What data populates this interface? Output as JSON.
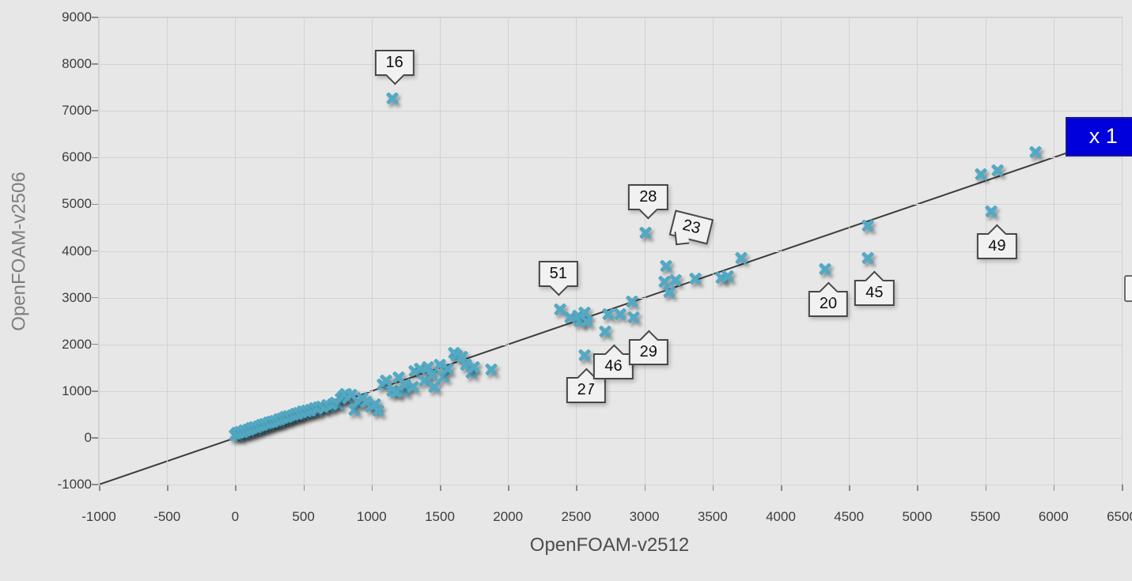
{
  "chart_data": {
    "type": "scatter",
    "title": "",
    "xlabel": "OpenFOAM-v2512",
    "ylabel": "OpenFOAM-v2506",
    "xlim": [
      -1000,
      6500
    ],
    "ylim": [
      -1000,
      9000
    ],
    "xticks": [
      -1000,
      -500,
      0,
      500,
      1000,
      1500,
      2000,
      2500,
      3000,
      3500,
      4000,
      4500,
      5000,
      5500,
      6000,
      6500
    ],
    "yticks": [
      -1000,
      0,
      1000,
      2000,
      3000,
      4000,
      5000,
      6000,
      7000,
      8000,
      9000
    ],
    "grid": true,
    "legend_position": "none",
    "marker": "x",
    "marker_color": "#53a9c4",
    "background_color": "#e7e7e7",
    "gridline_color": "#d2d2d2",
    "identity_line": {
      "label": "x 1",
      "from": [
        -1000,
        -1000
      ],
      "to": [
        6090,
        6090
      ],
      "color": "#3c3c3c",
      "label_bg": "#0000dc",
      "label_color": "#ffffff"
    },
    "points": [
      [
        0,
        70
      ],
      [
        15,
        110
      ],
      [
        25,
        45
      ],
      [
        40,
        135
      ],
      [
        55,
        90
      ],
      [
        70,
        160
      ],
      [
        80,
        115
      ],
      [
        95,
        185
      ],
      [
        105,
        140
      ],
      [
        120,
        210
      ],
      [
        130,
        165
      ],
      [
        145,
        235
      ],
      [
        155,
        190
      ],
      [
        170,
        255
      ],
      [
        180,
        215
      ],
      [
        195,
        280
      ],
      [
        205,
        240
      ],
      [
        220,
        305
      ],
      [
        230,
        265
      ],
      [
        245,
        330
      ],
      [
        255,
        290
      ],
      [
        270,
        350
      ],
      [
        280,
        315
      ],
      [
        295,
        375
      ],
      [
        305,
        340
      ],
      [
        320,
        400
      ],
      [
        330,
        360
      ],
      [
        345,
        425
      ],
      [
        355,
        385
      ],
      [
        370,
        445
      ],
      [
        380,
        410
      ],
      [
        395,
        470
      ],
      [
        405,
        430
      ],
      [
        420,
        495
      ],
      [
        430,
        455
      ],
      [
        445,
        515
      ],
      [
        455,
        480
      ],
      [
        470,
        540
      ],
      [
        480,
        500
      ],
      [
        495,
        565
      ],
      [
        510,
        525
      ],
      [
        525,
        585
      ],
      [
        540,
        550
      ],
      [
        555,
        610
      ],
      [
        570,
        575
      ],
      [
        585,
        635
      ],
      [
        600,
        595
      ],
      [
        615,
        655
      ],
      [
        635,
        680
      ],
      [
        655,
        640
      ],
      [
        675,
        705
      ],
      [
        695,
        665
      ],
      [
        715,
        730
      ],
      [
        735,
        755
      ],
      [
        755,
        720
      ],
      [
        775,
        845
      ],
      [
        790,
        890
      ],
      [
        810,
        940
      ],
      [
        830,
        860
      ],
      [
        852,
        925
      ],
      [
        871,
        614
      ],
      [
        900,
        783
      ],
      [
        930,
        855
      ],
      [
        958,
        783
      ],
      [
        996,
        672
      ],
      [
        1025,
        727
      ],
      [
        1045,
        587
      ],
      [
        1083,
        1150
      ],
      [
        1103,
        1235
      ],
      [
        1151,
        1010
      ],
      [
        1180,
        980
      ],
      [
        1199,
        1291
      ],
      [
        1238,
        1010
      ],
      [
        1247,
        1150
      ],
      [
        1305,
        1094
      ],
      [
        1315,
        1433
      ],
      [
        1354,
        1489
      ],
      [
        1392,
        1235
      ],
      [
        1412,
        1518
      ],
      [
        1441,
        1348
      ],
      [
        1460,
        1094
      ],
      [
        1499,
        1573
      ],
      [
        1528,
        1320
      ],
      [
        1557,
        1489
      ],
      [
        1605,
        1827
      ],
      [
        1624,
        1771
      ],
      [
        1663,
        1743
      ],
      [
        1692,
        1573
      ],
      [
        1731,
        1404
      ],
      [
        1750,
        1517
      ],
      [
        1875,
        1461
      ],
      [
        2380,
        2760
      ],
      [
        2457,
        2580
      ],
      [
        2515,
        2622
      ],
      [
        2526,
        2504
      ],
      [
        2561,
        2690
      ],
      [
        2578,
        2504
      ],
      [
        2560,
        1780
      ],
      [
        2715,
        2280
      ],
      [
        2735,
        2656
      ],
      [
        2822,
        2656
      ],
      [
        2910,
        2930
      ],
      [
        2920,
        2580
      ],
      [
        3010,
        4400
      ],
      [
        3160,
        3690
      ],
      [
        3150,
        3350
      ],
      [
        3230,
        3380
      ],
      [
        3180,
        3120
      ],
      [
        3372,
        3410
      ],
      [
        3565,
        3435
      ],
      [
        3614,
        3463
      ],
      [
        3710,
        3860
      ],
      [
        4325,
        3620
      ],
      [
        4640,
        3850
      ],
      [
        4640,
        4550
      ],
      [
        5470,
        5650
      ],
      [
        5590,
        5730
      ],
      [
        5545,
        4860
      ],
      [
        5870,
        6130
      ],
      [
        1150,
        7280
      ]
    ],
    "callouts": [
      {
        "label": "16",
        "x": 1150,
        "y": 7280,
        "placement": "above",
        "dx": 3
      },
      {
        "label": "28",
        "x": 3010,
        "y": 4400,
        "placement": "above",
        "dx": 3
      },
      {
        "label": "23",
        "x": 3160,
        "y": 3690,
        "placement": "above-right",
        "dx": 22,
        "rotation": 14
      },
      {
        "label": "51",
        "x": 2380,
        "y": 2760,
        "placement": "above",
        "dx": -2
      },
      {
        "label": "27",
        "x": 2560,
        "y": 1780,
        "placement": "below",
        "dx": 2
      },
      {
        "label": "46",
        "x": 2715,
        "y": 2280,
        "placement": "below",
        "dx": 10
      },
      {
        "label": "29",
        "x": 2920,
        "y": 2580,
        "placement": "below",
        "dx": 19
      },
      {
        "label": "20",
        "x": 4325,
        "y": 3620,
        "placement": "below",
        "dx": 4
      },
      {
        "label": "45",
        "x": 4640,
        "y": 3850,
        "placement": "below",
        "dx": 8
      },
      {
        "label": "49",
        "x": 5545,
        "y": 4860,
        "placement": "below",
        "dx": 7
      }
    ]
  }
}
